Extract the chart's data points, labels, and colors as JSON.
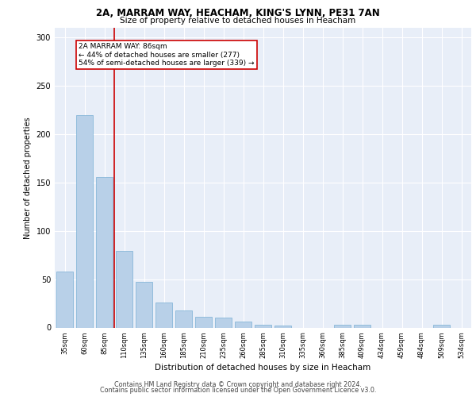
{
  "title_line1": "2A, MARRAM WAY, HEACHAM, KING'S LYNN, PE31 7AN",
  "title_line2": "Size of property relative to detached houses in Heacham",
  "xlabel": "Distribution of detached houses by size in Heacham",
  "ylabel": "Number of detached properties",
  "bar_color": "#b8d0e8",
  "bar_edge_color": "#7aafd4",
  "marker_line_color": "#cc0000",
  "categories": [
    "35sqm",
    "60sqm",
    "85sqm",
    "110sqm",
    "135sqm",
    "160sqm",
    "185sqm",
    "210sqm",
    "235sqm",
    "260sqm",
    "285sqm",
    "310sqm",
    "335sqm",
    "360sqm",
    "385sqm",
    "409sqm",
    "434sqm",
    "459sqm",
    "484sqm",
    "509sqm",
    "534sqm"
  ],
  "values": [
    58,
    220,
    156,
    79,
    47,
    26,
    18,
    11,
    10,
    6,
    3,
    2,
    0,
    0,
    3,
    3,
    0,
    0,
    0,
    3,
    0
  ],
  "marker_idx": 2,
  "annotation_title": "2A MARRAM WAY: 86sqm",
  "annotation_line1": "← 44% of detached houses are smaller (277)",
  "annotation_line2": "54% of semi-detached houses are larger (339) →",
  "ylim": [
    0,
    310
  ],
  "background_color": "#e8eef8",
  "footer_line1": "Contains HM Land Registry data © Crown copyright and database right 2024.",
  "footer_line2": "Contains public sector information licensed under the Open Government Licence v3.0."
}
